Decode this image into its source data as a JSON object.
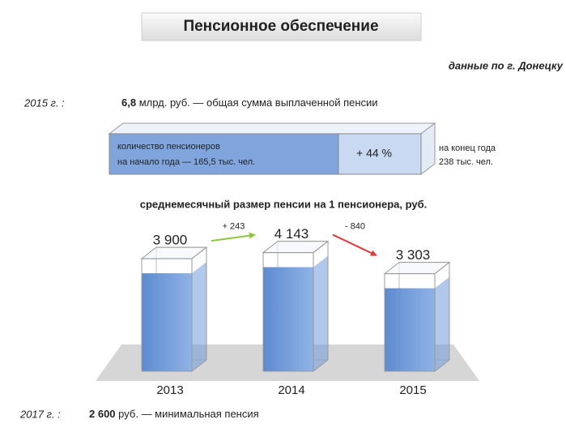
{
  "header": {
    "title": "Пенсионное обеспечение",
    "subtitle": "данные по г. Донецку"
  },
  "total": {
    "year": "2015 г. :",
    "amount": "6,8",
    "text": "млрд. руб. — общая сумма выплаченной пенсии"
  },
  "pensioners": {
    "start_line1": "количество пенсионеров",
    "start_line2": "на начало года — 165,5 тыс. чел.",
    "growth": "+ 44 %",
    "end_line1": "на конец года",
    "end_line2": "238 тыс. чел."
  },
  "chart_data": {
    "type": "bar",
    "title": "среднемесячный размер пенсии на 1 пенсионера, руб.",
    "categories": [
      "2013",
      "2014",
      "2015"
    ],
    "values": [
      3900,
      4143,
      3303
    ],
    "value_labels": [
      "3 900",
      "4 143",
      "3 303"
    ],
    "color": "#6f9ad8",
    "annotations": [
      {
        "label": "+ 243",
        "color": "#8cc63f"
      },
      {
        "label": "- 840",
        "color": "#e03c3c"
      }
    ]
  },
  "minimum": {
    "year": "2017 г. :",
    "amount": "2 600",
    "text": "руб. — минимальная пенсия"
  }
}
